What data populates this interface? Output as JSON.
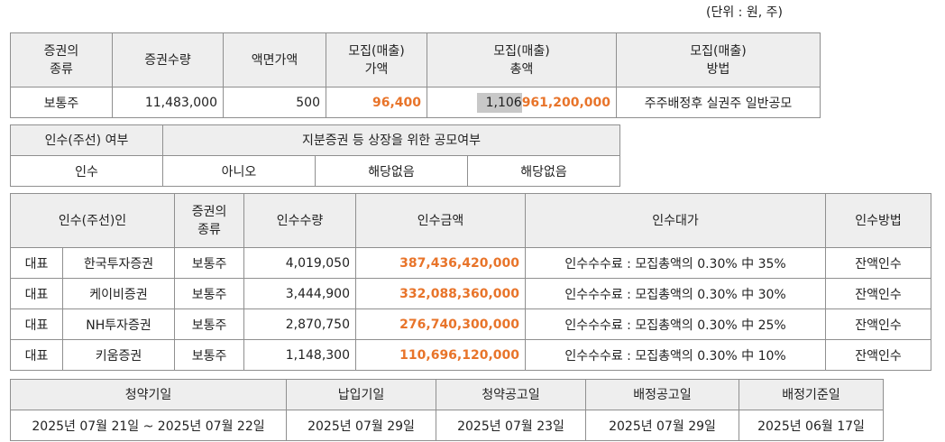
{
  "unit_note": "(단위 : 원, 주)",
  "offering": {
    "headers": [
      {
        "line1": "증권의",
        "line2": "종류"
      },
      {
        "line1": "증권수량",
        "line2": ""
      },
      {
        "line1": "액면가액",
        "line2": ""
      },
      {
        "line1": "모집(매출)",
        "line2": "가액"
      },
      {
        "line1": "모집(매출)",
        "line2": "총액"
      },
      {
        "line1": "모집(매출)",
        "line2": "방법"
      }
    ],
    "row": {
      "type": "보통주",
      "quantity": "11,483,000",
      "par_value": "500",
      "price": "96,400",
      "total_highlight": "1,106",
      "total_rest": "961,200,000",
      "method": "주주배정후 실권주 일반공모"
    }
  },
  "underwriting_status": {
    "col1_header": "인수(주선) 여부",
    "col2_header": "지분증권 등 상장을 위한 공모여부",
    "values": [
      "인수",
      "아니오",
      "해당없음",
      "해당없음"
    ]
  },
  "underwriters": {
    "headers": {
      "underwriter": "인수(주선)인",
      "type_line1": "증권의",
      "type_line2": "종류",
      "quantity": "인수수량",
      "amount": "인수금액",
      "fee": "인수대가",
      "method": "인수방법"
    },
    "rows": [
      {
        "role": "대표",
        "name": "한국투자증권",
        "type": "보통주",
        "quantity": "4,019,050",
        "amount": "387,436,420,000",
        "fee": "인수수수료 : 모집총액의 0.30% 中 35%",
        "method": "잔액인수"
      },
      {
        "role": "대표",
        "name": "케이비증권",
        "type": "보통주",
        "quantity": "3,444,900",
        "amount": "332,088,360,000",
        "fee": "인수수수료 : 모집총액의 0.30% 中 30%",
        "method": "잔액인수"
      },
      {
        "role": "대표",
        "name": "NH투자증권",
        "type": "보통주",
        "quantity": "2,870,750",
        "amount": "276,740,300,000",
        "fee": "인수수수료 : 모집총액의 0.30% 中 25%",
        "method": "잔액인수"
      },
      {
        "role": "대표",
        "name": "키움증권",
        "type": "보통주",
        "quantity": "1,148,300",
        "amount": "110,696,120,000",
        "fee": "인수수수료 : 모집총액의 0.30% 中 10%",
        "method": "잔액인수"
      }
    ]
  },
  "schedule": {
    "headers": [
      "청약기일",
      "납입기일",
      "청약공고일",
      "배정공고일",
      "배정기준일"
    ],
    "values": [
      "2025년 07월 21일 ~ 2025년 07월 22일",
      "2025년 07월 29일",
      "2025년 07월 23일",
      "2025년 07월 29일",
      "2025년 06월 17일"
    ]
  },
  "colors": {
    "accent_orange": "#e8742a",
    "header_bg": "#eeeeee",
    "highlight_gray": "#c8c8c8",
    "border": "#8f8f8f"
  }
}
